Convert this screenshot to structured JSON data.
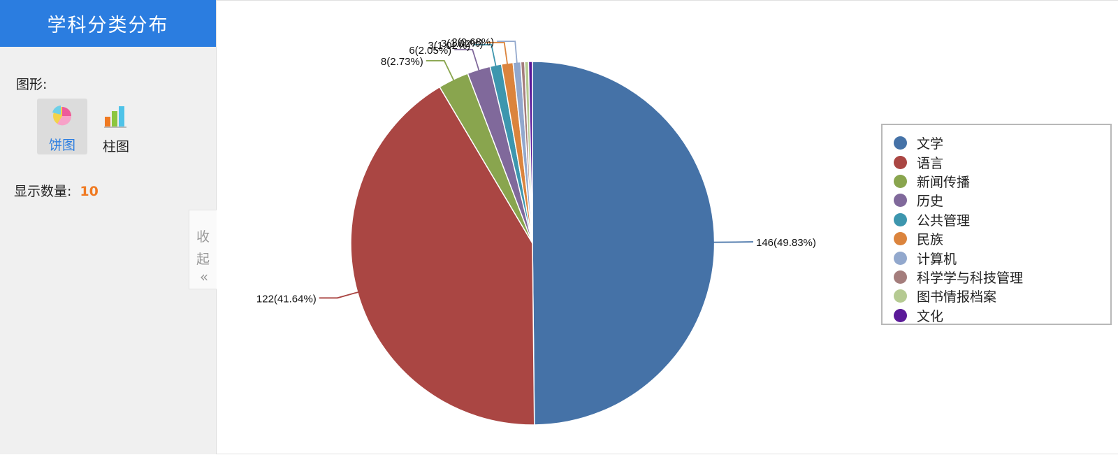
{
  "sidebar": {
    "title": "学科分类分布",
    "shape_label": "图形:",
    "chart_types": [
      {
        "label": "饼图",
        "icon": "pie-chart-icon",
        "selected": true
      },
      {
        "label": "柱图",
        "icon": "bar-chart-icon",
        "selected": false
      }
    ],
    "count_label": "显示数量:",
    "count_value": "10",
    "collapse": {
      "label_line1": "收",
      "label_line2": "起",
      "chevron": "«"
    }
  },
  "colors": {
    "header": "#2b7de0",
    "selected_label": "#2b7de0",
    "count_value": "#f07a22"
  },
  "chart_data": {
    "type": "pie",
    "title": "",
    "legend_position": "right",
    "slices": [
      {
        "name": "文学",
        "value": 146,
        "percent": 49.83,
        "label": "146(49.83%)",
        "color": "#4572a7"
      },
      {
        "name": "语言",
        "value": 122,
        "percent": 41.64,
        "label": "122(41.64%)",
        "color": "#aa4643"
      },
      {
        "name": "新闻传播",
        "value": 8,
        "percent": 2.73,
        "label": "8(2.73%)",
        "color": "#89a54e"
      },
      {
        "name": "历史",
        "value": 6,
        "percent": 2.05,
        "label": "6(2.05%)",
        "color": "#80699b"
      },
      {
        "name": "公共管理",
        "value": 3,
        "percent": 1.02,
        "label": "3(1.02%)",
        "color": "#3d96ae"
      },
      {
        "name": "民族",
        "value": 3,
        "percent": 1.02,
        "label": "3(1.02%)",
        "color": "#db843d"
      },
      {
        "name": "计算机",
        "value": 2,
        "percent": 0.68,
        "label": "2(0.68%)",
        "color": "#92a8cd"
      },
      {
        "name": "科学学与科技管理",
        "value": 1,
        "percent": 0.34,
        "label": "",
        "color": "#a47d7c"
      },
      {
        "name": "图书情报档案",
        "value": 1,
        "percent": 0.34,
        "label": "",
        "color": "#b5ca92"
      },
      {
        "name": "文化",
        "value": 1,
        "percent": 0.34,
        "label": "",
        "color": "#5b1a99"
      }
    ]
  }
}
